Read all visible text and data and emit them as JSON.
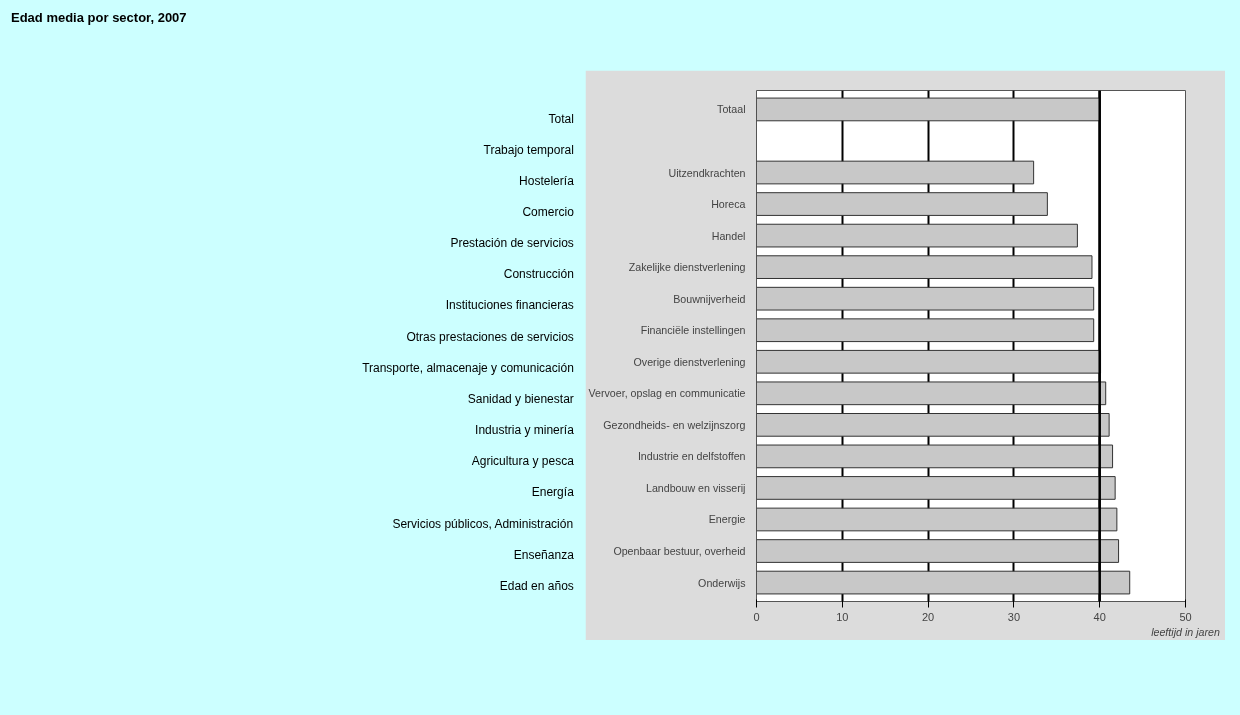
{
  "chart_data": {
    "type": "bar",
    "orientation": "horizontal",
    "title": "Edad media por sector, 2007",
    "categories": [
      "Totaal",
      null,
      "Uitzendkrachten",
      "Horeca",
      "Handel",
      "Zakelijke dienstverlening",
      "Bouwnijverheid",
      "Financiële instellingen",
      "Overige dienstverlening",
      "Vervoer, opslag en communicatie",
      "Gezondheids- en welzijnszorg",
      "Industrie en delfstoffen",
      "Landbouw en visserij",
      "Energie",
      "Openbaar bestuur, overheid",
      "Onderwijs"
    ],
    "values": [
      40,
      null,
      32.3,
      33.9,
      37.4,
      39.1,
      39.3,
      39.3,
      40.1,
      40.7,
      41.1,
      41.5,
      41.8,
      42.0,
      42.2,
      43.5
    ],
    "color": "#c8c8c8",
    "xlim": [
      0,
      50
    ],
    "xticks": [
      0,
      10,
      20,
      30,
      40,
      50
    ],
    "grid": "x",
    "xlabel": "leeftijd in jaren",
    "ref_lines": [
      {
        "axis": "x",
        "value": 40,
        "color": "#000000"
      }
    ],
    "annotations": [
      "Total",
      "Trabajo temporal",
      "Hostelería",
      "Comercio",
      "Prestación de servicios",
      "Construcción",
      "Instituciones financieras",
      "Otras prestaciones de servicios",
      "Transporte, almacenaje y comunicación",
      "Sanidad y bienestar",
      "Industria y minería",
      "Agricultura y pesca",
      "Energía",
      "Servicios públicos, Administración",
      "Enseñanza",
      "Edad en años"
    ]
  }
}
